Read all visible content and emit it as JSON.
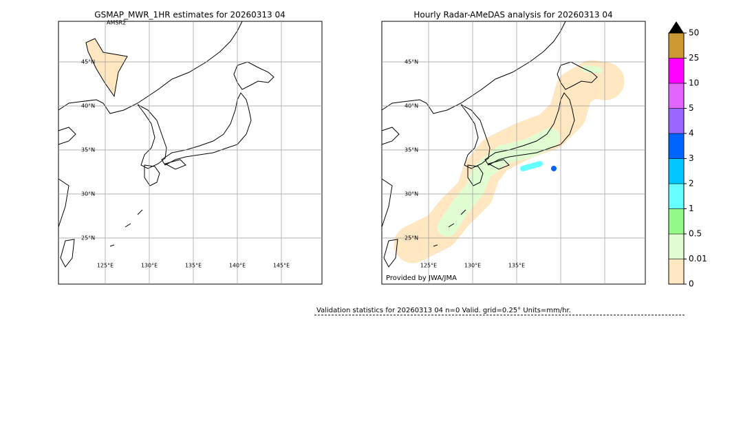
{
  "left_panel": {
    "title": "GSMAP_MWR_1HR estimates for 20260313 04",
    "sensor_label": "AMSR2",
    "lat_labels": [
      "45°N",
      "40°N",
      "35°N",
      "30°N",
      "25°N"
    ],
    "lon_labels": [
      "125°E",
      "130°E",
      "135°E",
      "140°E",
      "145°E"
    ]
  },
  "right_panel": {
    "title": "Hourly Radar-AMeDAS analysis for 20260313 04",
    "lat_labels": [
      "45°N",
      "40°N",
      "35°N",
      "30°N",
      "25°N"
    ],
    "lon_labels": [
      "125°E",
      "130°E",
      "135°E"
    ],
    "credit": "Provided by JWA/JMA"
  },
  "colorbar": {
    "levels": [
      "0",
      "0.01",
      "0.5",
      "1",
      "2",
      "3",
      "4",
      "5",
      "10",
      "25",
      "50"
    ],
    "colors": [
      "#fee7c1",
      "#e1fdd2",
      "#94fc86",
      "#66ffff",
      "#00c8ff",
      "#0064ff",
      "#9966ff",
      "#e066ff",
      "#ff00ff",
      "#cc9933"
    ],
    "overflow_color": "#000000"
  },
  "footer": {
    "validation": "Validation statistics for 20260313 04  n=0 Valid. grid=0.25° Units=mm/hr."
  }
}
